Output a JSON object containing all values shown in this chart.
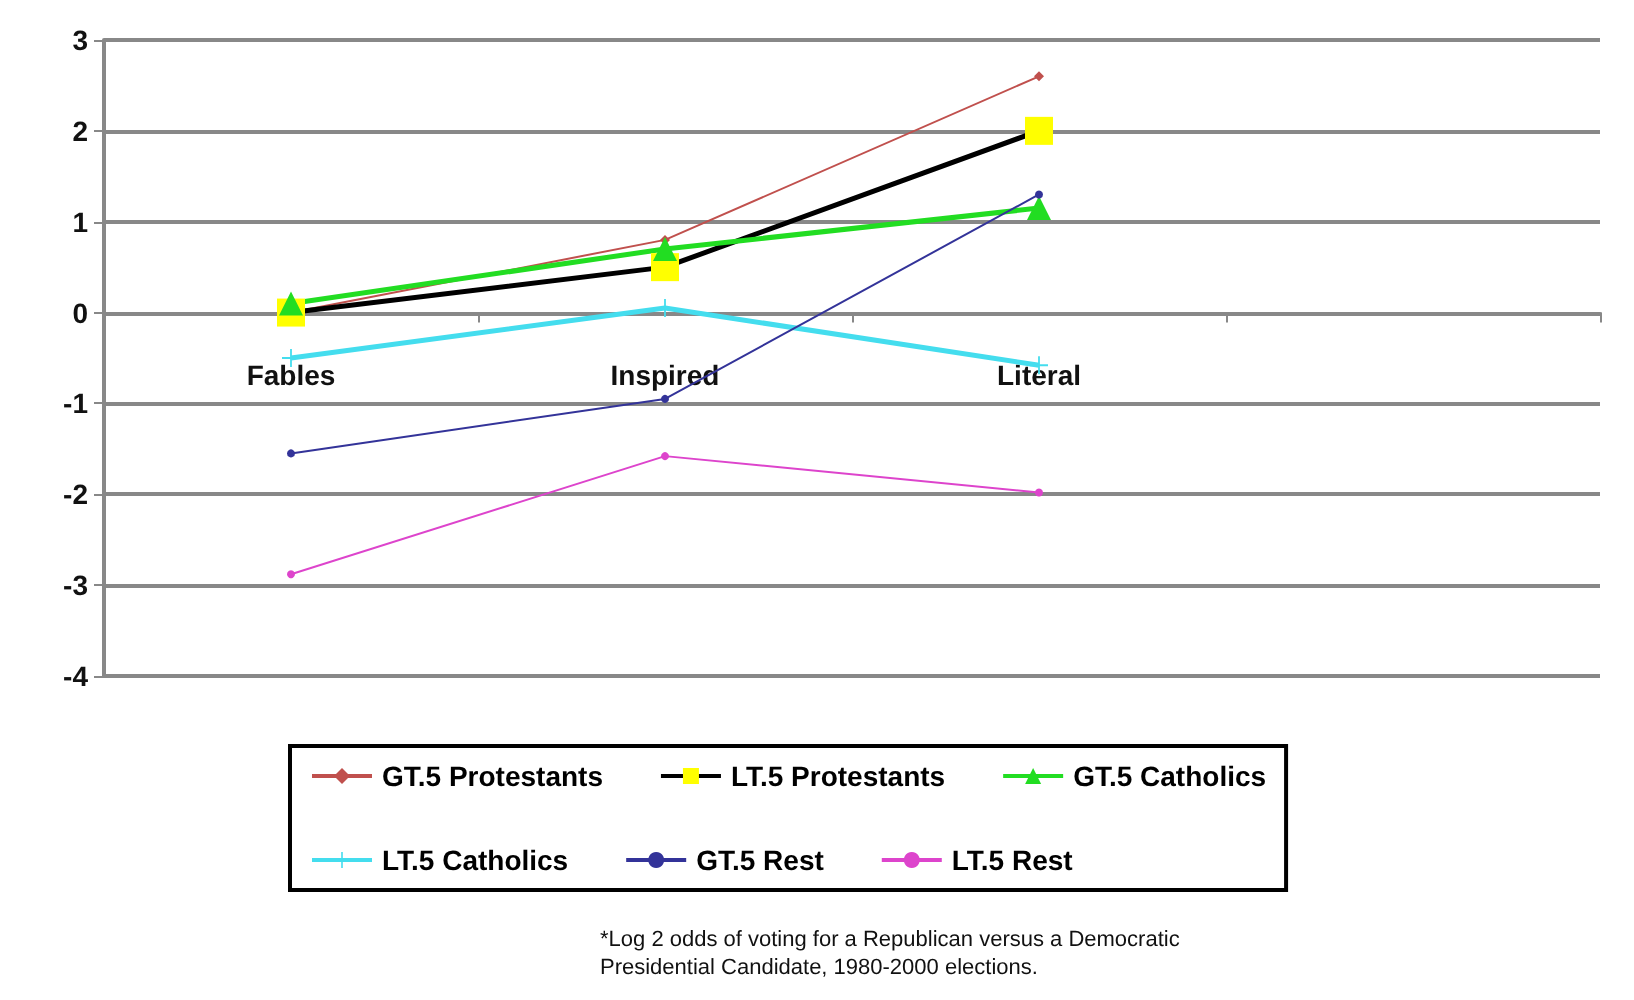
{
  "chart_data": {
    "type": "line",
    "categories": [
      "Fables",
      "Inspired",
      "Literal",
      null
    ],
    "series": [
      {
        "name": "GT.5 Protestants",
        "color": "#c0504d",
        "marker": "diamond",
        "values": [
          0,
          0.8,
          2.6,
          null
        ]
      },
      {
        "name": "LT.5 Protestants",
        "color": "#000000",
        "colors": [
          "#ffff00",
          "#ffff00",
          "#ffff00",
          "#ffff00"
        ],
        "marker": "square",
        "values": [
          0,
          0.5,
          2.0,
          null
        ]
      },
      {
        "name": "GT.5 Catholics",
        "color": "#22dd22",
        "marker": "triangle",
        "values": [
          0.1,
          0.7,
          1.15,
          null
        ]
      },
      {
        "name": "LT.5 Catholics",
        "color": "#44ddee",
        "marker": "cross",
        "values": [
          -0.5,
          0.05,
          -0.58,
          null
        ]
      },
      {
        "name": "GT.5 Rest",
        "color": "#333399",
        "marker": "circle",
        "values": [
          -1.55,
          -0.95,
          1.3,
          null
        ]
      },
      {
        "name": "LT.5 Rest",
        "color": "#dd44cc",
        "marker": "circle",
        "values": [
          -2.88,
          -1.58,
          -1.98,
          null
        ]
      }
    ],
    "ylim": [
      -4,
      3
    ],
    "yticks": [
      -4,
      -3,
      -2,
      -1,
      0,
      1,
      2,
      3
    ],
    "grid": "y",
    "legend": "bottom",
    "annotations": [
      "*Log 2 odds of voting for a Republican versus a Democratic\nPresidential Candidate, 1980-2000 elections."
    ]
  }
}
